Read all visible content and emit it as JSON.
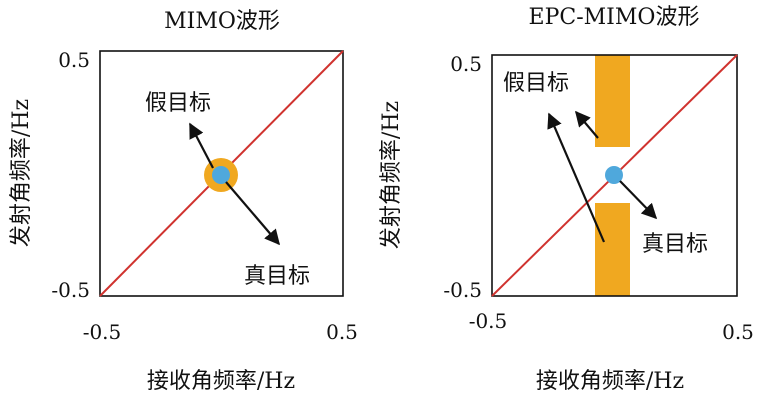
{
  "panels": [
    {
      "title": "MIMO波形",
      "y_tick_top": "0.5",
      "y_tick_bottom": "-0.5",
      "x_tick_left": "-0.5",
      "x_tick_right": "0.5",
      "ylabel": "发射角频率/Hz",
      "xlabel": "接收角频率/Hz",
      "false_target_label": "假目标",
      "true_target_label": "真目标"
    },
    {
      "title": "EPC-MIMO波形",
      "y_tick_top": "0.5",
      "y_tick_bottom": "-0.5",
      "x_tick_left": "-0.5",
      "x_tick_right": "0.5",
      "ylabel": "发射角频率/Hz",
      "xlabel": "接收角频率/Hz",
      "false_target_label": "假目标",
      "true_target_label": "真目标"
    }
  ],
  "colors": {
    "diagonal": "#d0332f",
    "target": "#4fa8dc",
    "false_region": "#f0a820",
    "axis": "#111111"
  }
}
